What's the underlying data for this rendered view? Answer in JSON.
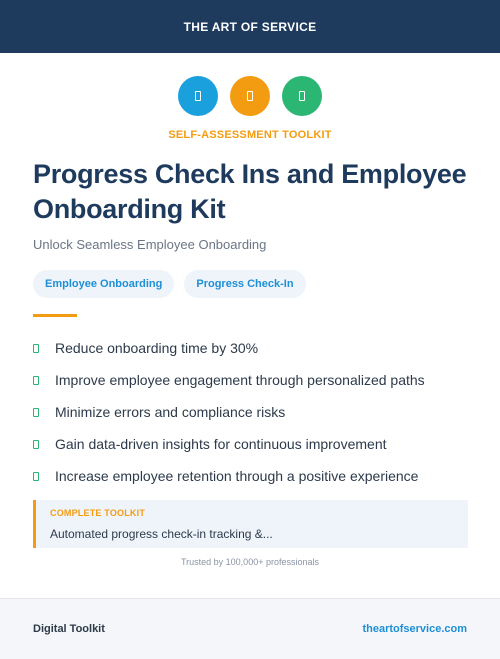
{
  "header": {
    "brand": "THE ART OF SERVICE"
  },
  "icons": [
    {
      "name": "document-icon",
      "color": "#1aa0dd"
    },
    {
      "name": "document-icon",
      "color": "#f39c12"
    },
    {
      "name": "document-icon",
      "color": "#2bb673"
    }
  ],
  "kicker": "SELF-ASSESSMENT TOOLKIT",
  "title": "Progress Check Ins and Employee Onboarding Kit",
  "subtitle": "Unlock Seamless Employee Onboarding",
  "tags": [
    "Employee Onboarding",
    "Progress Check-In"
  ],
  "benefits": [
    "Reduce onboarding time by 30%",
    "Improve employee engagement through personalized paths",
    "Minimize errors and compliance risks",
    "Gain data-driven insights for continuous improvement",
    "Increase employee retention through a positive experience"
  ],
  "callout": {
    "label": "COMPLETE TOOLKIT",
    "text": "Automated progress check-in tracking &..."
  },
  "trusted": "Trusted by 100,000+ professionals",
  "footer": {
    "left": "Digital Toolkit",
    "right": "theartofservice.com"
  },
  "colors": {
    "navy": "#1e3a5c",
    "orange": "#f39c12",
    "blue": "#1e8fd5",
    "green": "#2bb673"
  }
}
